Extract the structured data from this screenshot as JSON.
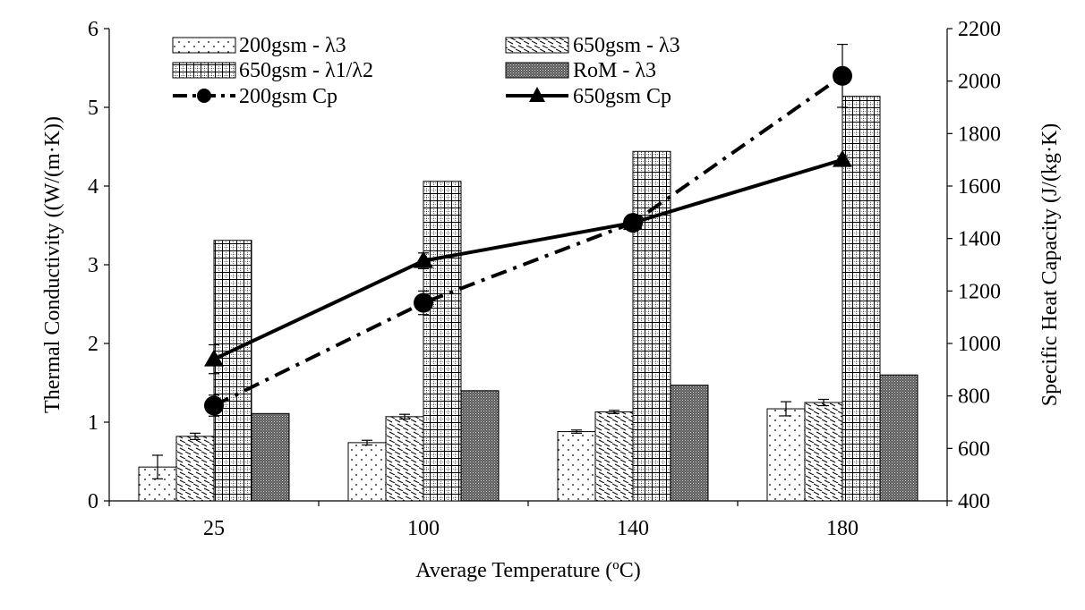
{
  "chart_data": {
    "type": "bar",
    "categories": [
      "25",
      "100",
      "140",
      "180"
    ],
    "xlabel": "Average Temperature (ºC)",
    "ylabel": "Thermal Conductivity ((W/(m·K))",
    "y2label": "Specific Heat Capacity (J/(kg·K)",
    "ylim": [
      0,
      6
    ],
    "y2lim": [
      400,
      2200
    ],
    "yticks": [
      "0",
      "1",
      "2",
      "3",
      "4",
      "5",
      "6"
    ],
    "y2ticks": [
      "400",
      "600",
      "800",
      "1000",
      "1200",
      "1400",
      "1600",
      "1800",
      "2000",
      "2200"
    ],
    "grid": false,
    "legend_position": "top",
    "bar_series": [
      {
        "name": "200gsm - λ3",
        "pattern": "dots",
        "values": [
          0.43,
          0.74,
          0.88,
          1.17
        ],
        "errors": [
          0.15,
          0.03,
          0.02,
          0.09
        ]
      },
      {
        "name": "650gsm - λ3",
        "pattern": "diagonal-dash",
        "values": [
          0.82,
          1.07,
          1.13,
          1.25
        ],
        "errors": [
          0.04,
          0.03,
          0.02,
          0.04
        ]
      },
      {
        "name": "650gsm - λ1/λ2",
        "pattern": "grid",
        "values": [
          3.31,
          4.06,
          4.44,
          5.14
        ],
        "errors": [
          0,
          0,
          0,
          0
        ]
      },
      {
        "name": "RoM - λ3",
        "pattern": "dense",
        "values": [
          1.11,
          1.4,
          1.47,
          1.6
        ],
        "errors": [
          0,
          0,
          0,
          0
        ]
      }
    ],
    "line_series": [
      {
        "name": "200gsm Cp",
        "marker": "circle",
        "style": "dash-dot",
        "values": [
          763,
          1155,
          1460,
          2020
        ],
        "errors": [
          40,
          45,
          25,
          120
        ]
      },
      {
        "name": "650gsm Cp",
        "marker": "triangle",
        "style": "solid",
        "values": [
          940,
          1315,
          1460,
          1700
        ],
        "errors": [
          55,
          30,
          20,
          15
        ]
      }
    ]
  }
}
